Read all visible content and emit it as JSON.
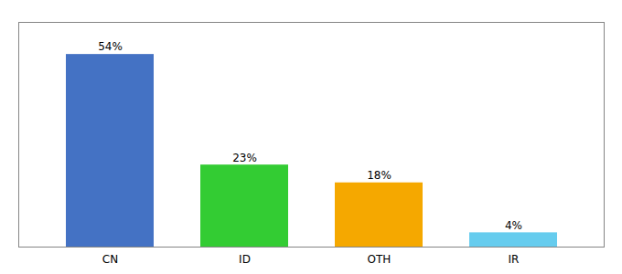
{
  "chart_data": {
    "type": "bar",
    "categories": [
      "CN",
      "ID",
      "OTH",
      "IR"
    ],
    "values": [
      54,
      23,
      18,
      4
    ],
    "value_labels": [
      "54%",
      "23%",
      "18%",
      "4%"
    ],
    "colors": [
      "#4472c4",
      "#33cc33",
      "#f5a800",
      "#66ccee"
    ],
    "ylim": [
      0,
      63
    ],
    "yticks": [],
    "grid": false,
    "data_labels": true,
    "tick_labels": "x"
  }
}
